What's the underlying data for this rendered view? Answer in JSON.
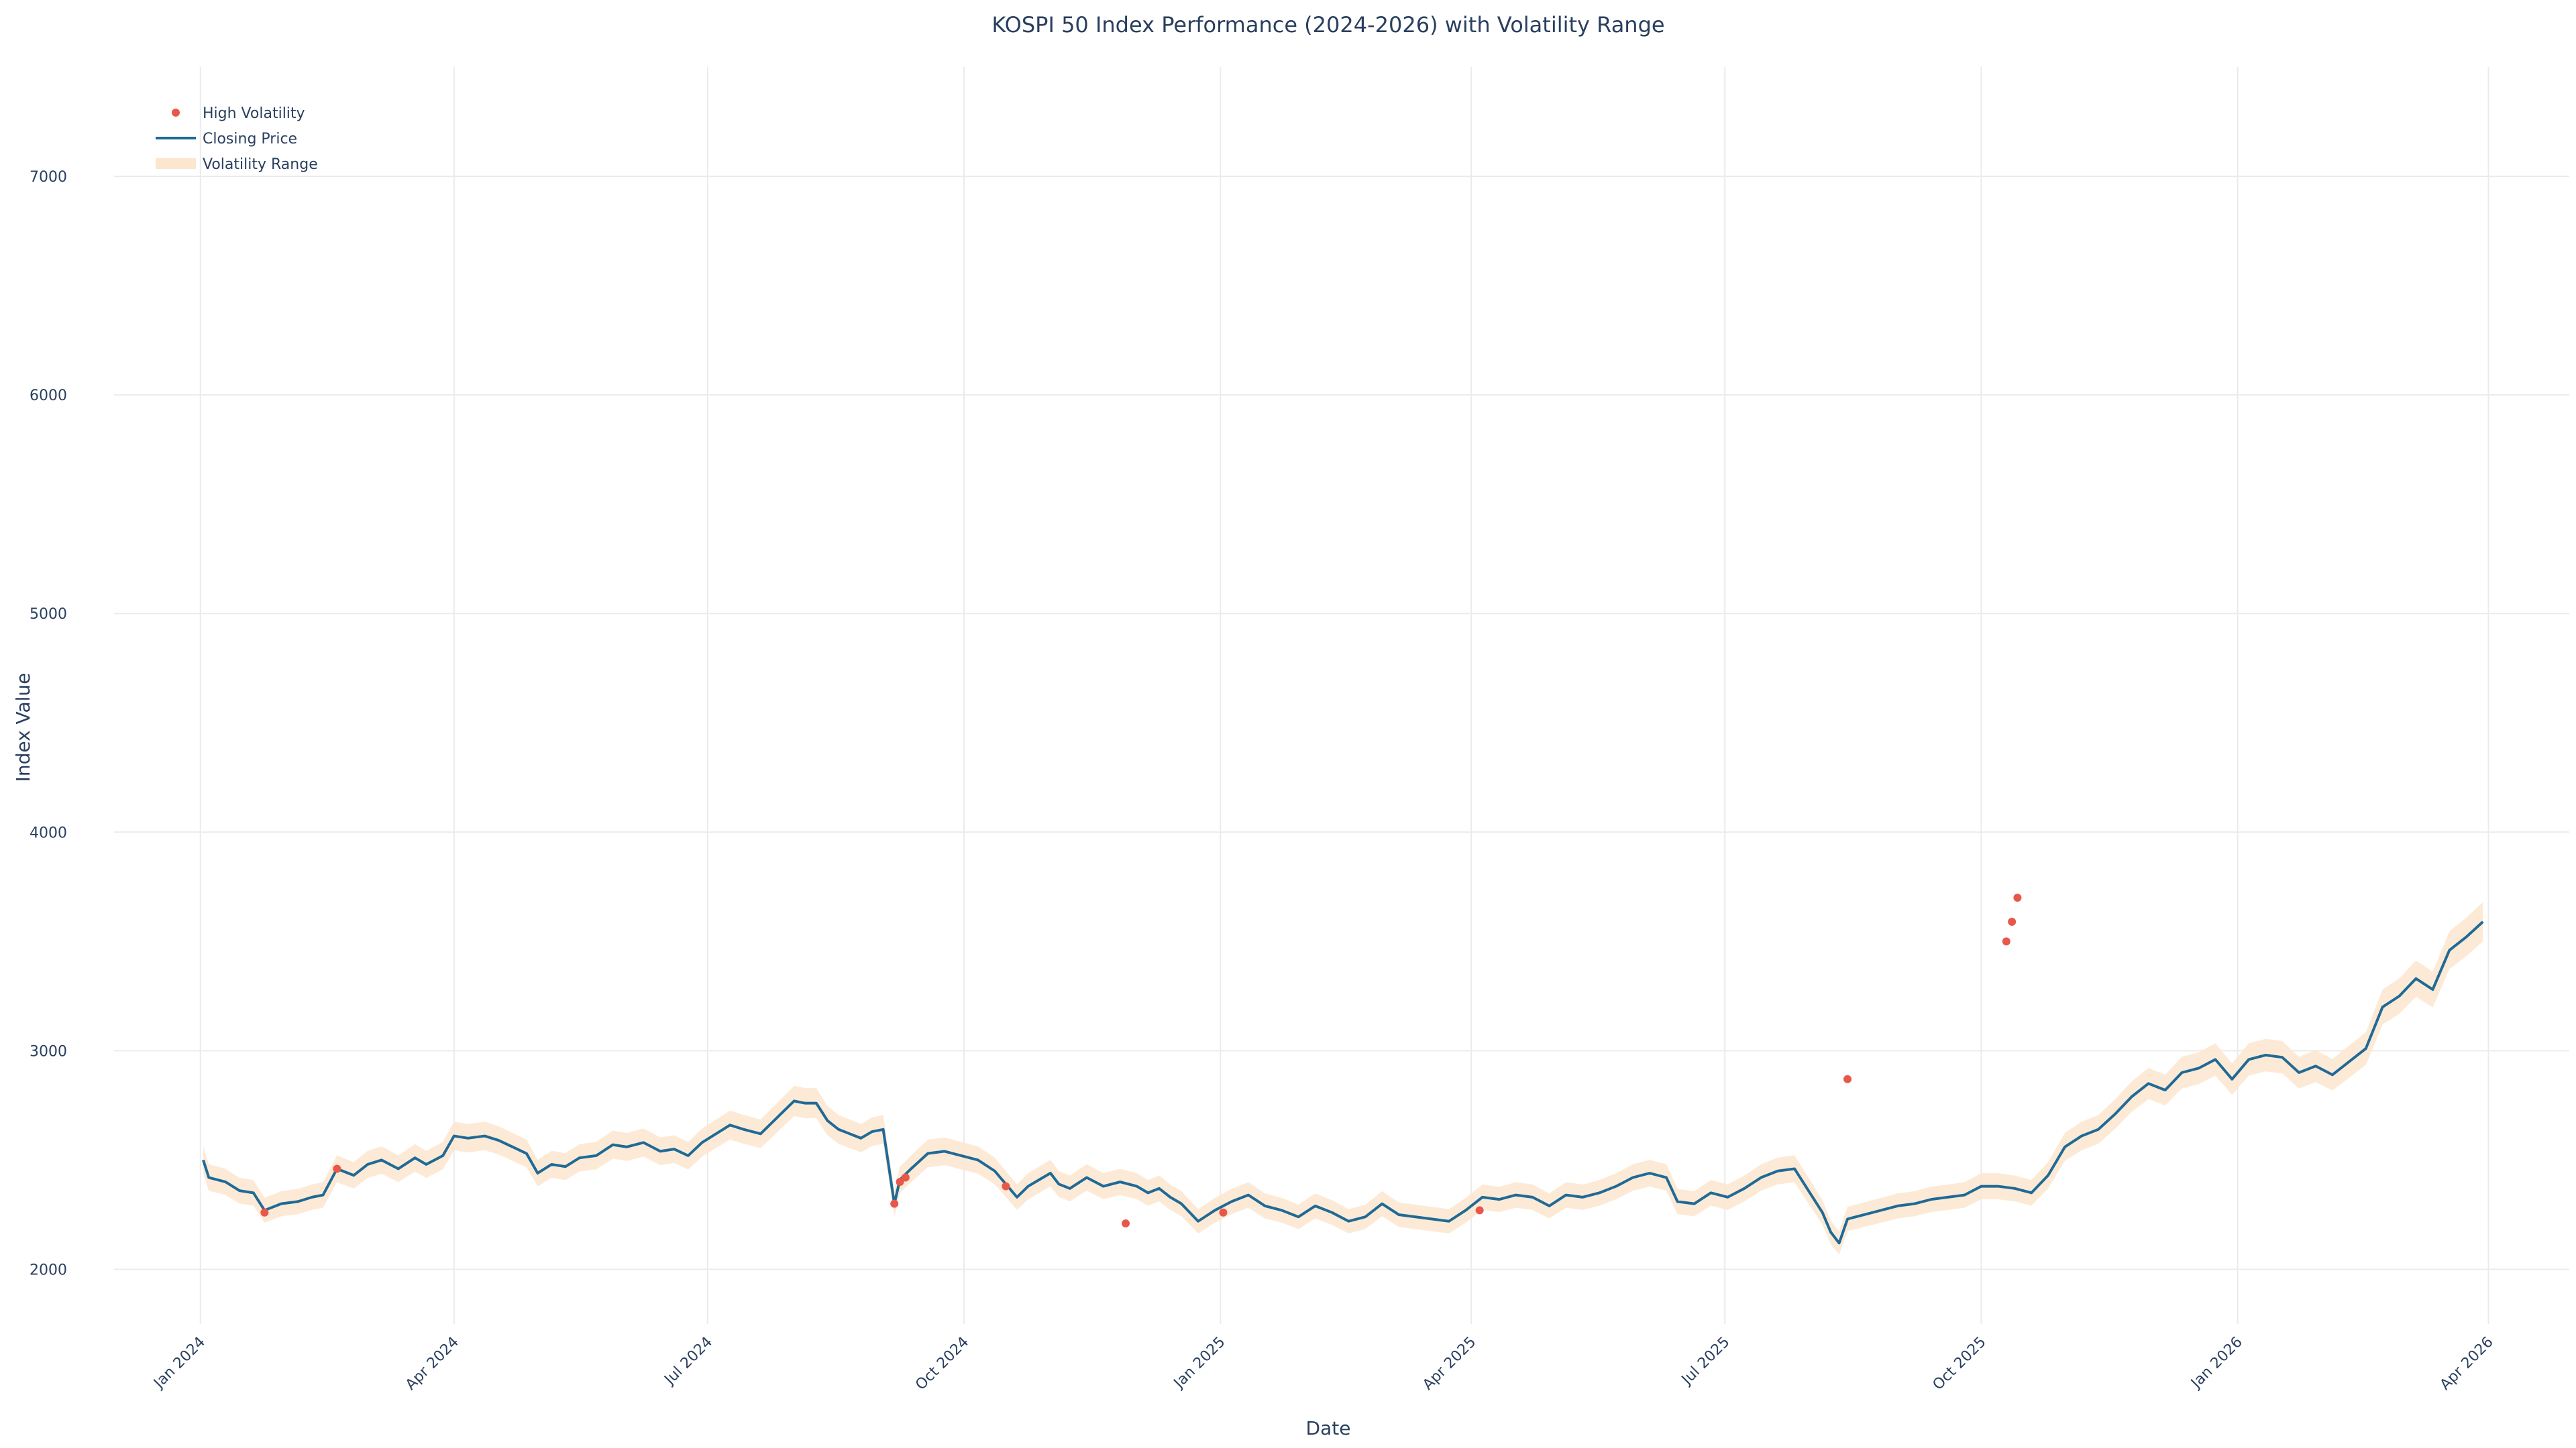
{
  "chart_data": {
    "type": "line",
    "title": "KOSPI 50 Index Performance (2024-2026) with Volatility Range",
    "xlabel": "Date",
    "ylabel": "Index Value",
    "grid": true,
    "legend_position": "top-left",
    "x_range": [
      "2023-12-01",
      "2026-04-30"
    ],
    "ylim": [
      1750,
      7500
    ],
    "y_ticks": [
      2000,
      3000,
      4000,
      5000,
      6000,
      7000
    ],
    "x_ticks": [
      {
        "date": "2024-01-01",
        "label": "Jan 2024"
      },
      {
        "date": "2024-04-01",
        "label": "Apr 2024"
      },
      {
        "date": "2024-07-01",
        "label": "Jul 2024"
      },
      {
        "date": "2024-10-01",
        "label": "Oct 2024"
      },
      {
        "date": "2025-01-01",
        "label": "Jan 2025"
      },
      {
        "date": "2025-04-01",
        "label": "Apr 2025"
      },
      {
        "date": "2025-07-01",
        "label": "Jul 2025"
      },
      {
        "date": "2025-10-01",
        "label": "Oct 2025"
      },
      {
        "date": "2026-01-01",
        "label": "Jan 2026"
      },
      {
        "date": "2026-04-01",
        "label": "Apr 2026"
      }
    ],
    "colors": {
      "line": "#1f6a96",
      "band": "#fde6cf",
      "marker": "#e8584a"
    },
    "legend": [
      {
        "key": "marker",
        "label": "High Volatility"
      },
      {
        "key": "line",
        "label": "Closing Price"
      },
      {
        "key": "band",
        "label": "Volatility Range"
      }
    ],
    "series": [
      {
        "name": "Closing Price",
        "points": [
          [
            "2024-01-02",
            2500
          ],
          [
            "2024-01-04",
            2420
          ],
          [
            "2024-01-10",
            2400
          ],
          [
            "2024-01-15",
            2360
          ],
          [
            "2024-01-20",
            2350
          ],
          [
            "2024-01-24",
            2270
          ],
          [
            "2024-01-30",
            2300
          ],
          [
            "2024-02-05",
            2310
          ],
          [
            "2024-02-10",
            2330
          ],
          [
            "2024-02-14",
            2340
          ],
          [
            "2024-02-19",
            2460
          ],
          [
            "2024-02-25",
            2430
          ],
          [
            "2024-03-01",
            2480
          ],
          [
            "2024-03-06",
            2500
          ],
          [
            "2024-03-12",
            2460
          ],
          [
            "2024-03-18",
            2510
          ],
          [
            "2024-03-22",
            2480
          ],
          [
            "2024-03-28",
            2520
          ],
          [
            "2024-04-01",
            2610
          ],
          [
            "2024-04-06",
            2600
          ],
          [
            "2024-04-12",
            2610
          ],
          [
            "2024-04-17",
            2590
          ],
          [
            "2024-04-22",
            2560
          ],
          [
            "2024-04-27",
            2530
          ],
          [
            "2024-05-01",
            2440
          ],
          [
            "2024-05-06",
            2480
          ],
          [
            "2024-05-11",
            2470
          ],
          [
            "2024-05-16",
            2510
          ],
          [
            "2024-05-22",
            2520
          ],
          [
            "2024-05-28",
            2570
          ],
          [
            "2024-06-02",
            2560
          ],
          [
            "2024-06-08",
            2580
          ],
          [
            "2024-06-14",
            2540
          ],
          [
            "2024-06-19",
            2550
          ],
          [
            "2024-06-24",
            2520
          ],
          [
            "2024-06-29",
            2580
          ],
          [
            "2024-07-04",
            2620
          ],
          [
            "2024-07-09",
            2660
          ],
          [
            "2024-07-14",
            2640
          ],
          [
            "2024-07-20",
            2620
          ],
          [
            "2024-07-24",
            2670
          ],
          [
            "2024-07-28",
            2720
          ],
          [
            "2024-08-01",
            2770
          ],
          [
            "2024-08-05",
            2760
          ],
          [
            "2024-08-09",
            2760
          ],
          [
            "2024-08-13",
            2680
          ],
          [
            "2024-08-17",
            2640
          ],
          [
            "2024-08-21",
            2620
          ],
          [
            "2024-08-25",
            2600
          ],
          [
            "2024-08-29",
            2630
          ],
          [
            "2024-09-02",
            2640
          ],
          [
            "2024-09-06",
            2300
          ],
          [
            "2024-09-08",
            2410
          ],
          [
            "2024-09-12",
            2460
          ],
          [
            "2024-09-18",
            2530
          ],
          [
            "2024-09-24",
            2540
          ],
          [
            "2024-09-30",
            2520
          ],
          [
            "2024-10-06",
            2500
          ],
          [
            "2024-10-12",
            2450
          ],
          [
            "2024-10-16",
            2390
          ],
          [
            "2024-10-20",
            2330
          ],
          [
            "2024-10-24",
            2380
          ],
          [
            "2024-10-28",
            2410
          ],
          [
            "2024-11-01",
            2440
          ],
          [
            "2024-11-04",
            2390
          ],
          [
            "2024-11-08",
            2370
          ],
          [
            "2024-11-14",
            2420
          ],
          [
            "2024-11-20",
            2380
          ],
          [
            "2024-11-26",
            2400
          ],
          [
            "2024-12-02",
            2380
          ],
          [
            "2024-12-06",
            2350
          ],
          [
            "2024-12-10",
            2370
          ],
          [
            "2024-12-14",
            2330
          ],
          [
            "2024-12-18",
            2300
          ],
          [
            "2024-12-24",
            2220
          ],
          [
            "2024-12-30",
            2270
          ],
          [
            "2025-01-05",
            2310
          ],
          [
            "2025-01-11",
            2340
          ],
          [
            "2025-01-17",
            2290
          ],
          [
            "2025-01-23",
            2270
          ],
          [
            "2025-01-29",
            2240
          ],
          [
            "2025-02-04",
            2290
          ],
          [
            "2025-02-10",
            2260
          ],
          [
            "2025-02-16",
            2220
          ],
          [
            "2025-02-22",
            2240
          ],
          [
            "2025-02-28",
            2300
          ],
          [
            "2025-03-06",
            2250
          ],
          [
            "2025-03-12",
            2240
          ],
          [
            "2025-03-18",
            2230
          ],
          [
            "2025-03-24",
            2220
          ],
          [
            "2025-03-30",
            2270
          ],
          [
            "2025-04-05",
            2330
          ],
          [
            "2025-04-11",
            2320
          ],
          [
            "2025-04-17",
            2340
          ],
          [
            "2025-04-23",
            2330
          ],
          [
            "2025-04-29",
            2290
          ],
          [
            "2025-05-05",
            2340
          ],
          [
            "2025-05-11",
            2330
          ],
          [
            "2025-05-17",
            2350
          ],
          [
            "2025-05-23",
            2380
          ],
          [
            "2025-05-29",
            2420
          ],
          [
            "2025-06-04",
            2440
          ],
          [
            "2025-06-10",
            2420
          ],
          [
            "2025-06-14",
            2310
          ],
          [
            "2025-06-20",
            2300
          ],
          [
            "2025-06-26",
            2350
          ],
          [
            "2025-07-02",
            2330
          ],
          [
            "2025-07-08",
            2370
          ],
          [
            "2025-07-14",
            2420
          ],
          [
            "2025-07-20",
            2450
          ],
          [
            "2025-07-26",
            2460
          ],
          [
            "2025-08-01",
            2340
          ],
          [
            "2025-08-05",
            2260
          ],
          [
            "2025-08-08",
            2170
          ],
          [
            "2025-08-11",
            2120
          ],
          [
            "2025-08-14",
            2230
          ],
          [
            "2025-08-20",
            2250
          ],
          [
            "2025-08-26",
            2270
          ],
          [
            "2025-09-01",
            2290
          ],
          [
            "2025-09-07",
            2300
          ],
          [
            "2025-09-13",
            2320
          ],
          [
            "2025-09-19",
            2330
          ],
          [
            "2025-09-25",
            2340
          ],
          [
            "2025-10-01",
            2380
          ],
          [
            "2025-10-07",
            2380
          ],
          [
            "2025-10-13",
            2370
          ],
          [
            "2025-10-19",
            2350
          ],
          [
            "2025-10-25",
            2430
          ],
          [
            "2025-10-31",
            2560
          ],
          [
            "2025-11-06",
            2610
          ],
          [
            "2025-11-12",
            2640
          ],
          [
            "2025-11-18",
            2710
          ],
          [
            "2025-11-24",
            2790
          ],
          [
            "2025-11-30",
            2850
          ],
          [
            "2025-12-06",
            2820
          ],
          [
            "2025-12-12",
            2900
          ],
          [
            "2025-12-18",
            2920
          ],
          [
            "2025-12-24",
            2960
          ],
          [
            "2025-12-30",
            2870
          ],
          [
            "2026-01-05",
            2960
          ],
          [
            "2026-01-11",
            2980
          ],
          [
            "2026-01-17",
            2970
          ],
          [
            "2026-01-23",
            2900
          ],
          [
            "2026-01-29",
            2930
          ],
          [
            "2026-02-04",
            2890
          ],
          [
            "2026-02-10",
            2950
          ],
          [
            "2026-02-16",
            3010
          ],
          [
            "2026-02-22",
            3200
          ],
          [
            "2026-02-28",
            3250
          ],
          [
            "2026-03-06",
            3330
          ],
          [
            "2026-03-12",
            3280
          ],
          [
            "2026-03-18",
            3460
          ],
          [
            "2026-03-24",
            3520
          ],
          [
            "2026-03-30",
            3590
          ]
        ]
      },
      {
        "name": "High Volatility",
        "points": [
          [
            "2024-01-24",
            2260
          ],
          [
            "2024-02-19",
            2460
          ],
          [
            "2024-09-06",
            2300
          ],
          [
            "2024-09-08",
            2400
          ],
          [
            "2024-09-10",
            2420
          ],
          [
            "2024-10-16",
            2380
          ],
          [
            "2024-11-28",
            2210
          ],
          [
            "2025-01-02",
            2260
          ],
          [
            "2025-04-04",
            2270
          ],
          [
            "2025-08-14",
            2870
          ],
          [
            "2025-10-10",
            3500
          ],
          [
            "2025-10-12",
            3590
          ],
          [
            "2025-10-14",
            3700
          ]
        ]
      }
    ]
  }
}
